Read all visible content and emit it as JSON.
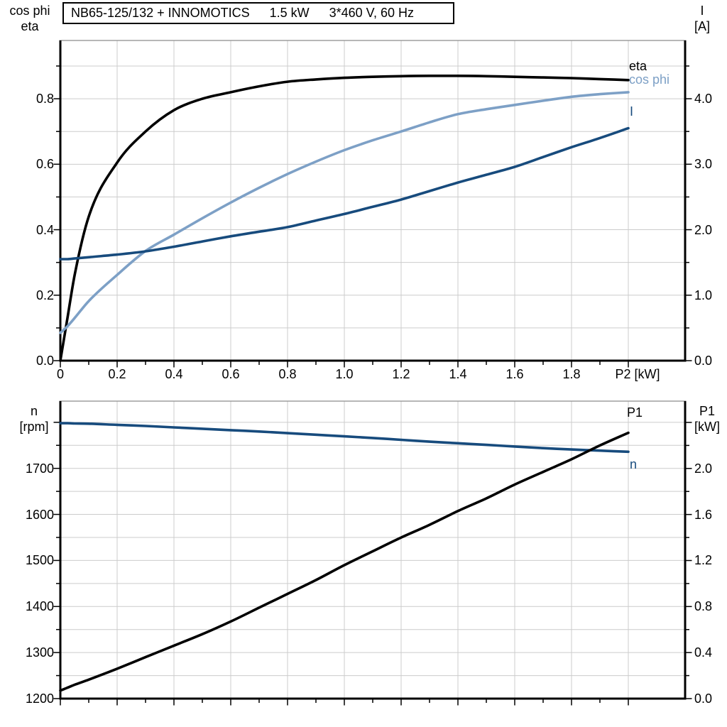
{
  "title": {
    "model": "NB65-125/132 + INNOMOTICS",
    "power": "1.5 kW",
    "voltage": "3*460 V, 60 Hz"
  },
  "colors": {
    "eta_curve": "#000000",
    "cos_phi_curve": "#7da0c6",
    "current_curve": "#174b7d",
    "speed_curve": "#174b7d",
    "p1_curve": "#000000",
    "grid": "#cccccc",
    "frame_top": "#8c8c8c",
    "axis": "#000000",
    "background": "#ffffff"
  },
  "labels": {
    "top_left": [
      "cos phi",
      "eta"
    ],
    "top_right": [
      "I",
      "[A]"
    ],
    "bottom_left": [
      "n",
      "[rpm]"
    ],
    "bottom_right": [
      "P1",
      "[kW]"
    ]
  },
  "curve_labels": {
    "eta": "eta",
    "cos_phi": "cos phi",
    "current": "I",
    "p1": "P1",
    "speed": "n"
  },
  "chart_data": [
    {
      "type": "line",
      "panel": "top",
      "x_label": "P2 [kW]",
      "x_range": [
        0,
        2.2
      ],
      "x_minor_step": 0.1,
      "x_tick_values": [
        0,
        0.2,
        0.4,
        0.6,
        0.8,
        1.0,
        1.2,
        1.4,
        1.6,
        1.8
      ],
      "x_tick_labels": [
        "0",
        "0.2",
        "0.4",
        "0.6",
        "0.8",
        "1.0",
        "1.2",
        "1.4",
        "1.6",
        "1.8"
      ],
      "x_unit_label_at": 2.0,
      "left_axis": {
        "label": "cos phi / eta",
        "range": [
          0,
          0.978
        ],
        "minor_step": 0.1,
        "tick_values": [
          0,
          0.2,
          0.4,
          0.6,
          0.8
        ],
        "tick_labels": [
          "0.0",
          "0.2",
          "0.4",
          "0.6",
          "0.8"
        ],
        "unlabeled_tick_values": []
      },
      "right_axis": {
        "label": "I [A]",
        "range": [
          0,
          4.89
        ],
        "minor_step": 0.5,
        "tick_values": [
          0,
          1.0,
          2.0,
          3.0,
          4.0
        ],
        "tick_labels": [
          "0.0",
          "1.0",
          "2.0",
          "3.0",
          "4.0"
        ],
        "unlabeled_tick_values": []
      },
      "x": [
        0,
        0.025,
        0.05,
        0.1,
        0.2,
        0.3,
        0.4,
        0.5,
        0.6,
        0.7,
        0.8,
        0.9,
        1.0,
        1.1,
        1.2,
        1.3,
        1.4,
        1.5,
        1.6,
        1.7,
        1.8,
        1.9,
        2.0
      ],
      "series": [
        {
          "name": "eta",
          "axis": "left",
          "color": "#000000",
          "values": [
            0,
            0.13,
            0.26,
            0.44,
            0.605,
            0.7,
            0.765,
            0.8,
            0.82,
            0.838,
            0.852,
            0.859,
            0.864,
            0.867,
            0.869,
            0.87,
            0.87,
            0.869,
            0.867,
            0.865,
            0.863,
            0.86,
            0.857
          ]
        },
        {
          "name": "cos phi",
          "axis": "left",
          "color": "#7da0c6",
          "values": [
            0.085,
            0.105,
            0.13,
            0.182,
            0.262,
            0.335,
            0.385,
            0.435,
            0.483,
            0.528,
            0.57,
            0.608,
            0.643,
            0.673,
            0.7,
            0.728,
            0.753,
            0.768,
            0.781,
            0.794,
            0.806,
            0.814,
            0.82
          ]
        },
        {
          "name": "I",
          "axis": "right",
          "color": "#174b7d",
          "values": [
            1.55,
            1.55,
            1.56,
            1.58,
            1.62,
            1.67,
            1.74,
            1.82,
            1.9,
            1.97,
            2.04,
            2.14,
            2.24,
            2.35,
            2.46,
            2.59,
            2.72,
            2.84,
            2.96,
            3.11,
            3.26,
            3.4,
            3.55
          ]
        }
      ]
    },
    {
      "type": "line",
      "panel": "bottom",
      "x_label": "",
      "x_range": [
        0,
        2.2
      ],
      "x_minor_step": 0.1,
      "x_tick_values": [
        0,
        0.2,
        0.4,
        0.6,
        0.8,
        1.0,
        1.2,
        1.4,
        1.6,
        1.8
      ],
      "x_tick_labels": [],
      "x_unit_label_at": 2.0,
      "left_axis": {
        "label": "n [rpm]",
        "range": [
          1200,
          1846
        ],
        "minor_step": 50,
        "tick_values": [
          1200,
          1300,
          1400,
          1500,
          1600,
          1700
        ],
        "tick_labels": [
          "1200",
          "1300",
          "1400",
          "1500",
          "1600",
          "1700"
        ],
        "unlabeled_tick_values": [
          1800
        ]
      },
      "right_axis": {
        "label": "P1 [kW]",
        "range": [
          0,
          2.585
        ],
        "minor_step": 0.2,
        "tick_values": [
          0,
          0.4,
          0.8,
          1.2,
          1.6,
          2.0
        ],
        "tick_labels": [
          "0.0",
          "0.4",
          "0.8",
          "1.2",
          "1.6",
          "2.0"
        ],
        "unlabeled_tick_values": [
          2.4
        ]
      },
      "x": [
        0,
        0.025,
        0.05,
        0.1,
        0.2,
        0.3,
        0.4,
        0.5,
        0.6,
        0.7,
        0.8,
        0.9,
        1.0,
        1.1,
        1.2,
        1.3,
        1.4,
        1.5,
        1.6,
        1.7,
        1.8,
        1.9,
        2.0
      ],
      "series": [
        {
          "name": "n",
          "axis": "left",
          "color": "#174b7d",
          "values": [
            1798,
            1798,
            1797.5,
            1797,
            1794.5,
            1792,
            1789,
            1786,
            1783,
            1780,
            1776.5,
            1773,
            1769.5,
            1766,
            1762,
            1758,
            1754.5,
            1751,
            1747.5,
            1744,
            1741,
            1738.5,
            1736
          ]
        },
        {
          "name": "P1",
          "axis": "right",
          "color": "#000000",
          "values": [
            0.07,
            0.095,
            0.12,
            0.165,
            0.26,
            0.36,
            0.46,
            0.56,
            0.67,
            0.79,
            0.91,
            1.03,
            1.16,
            1.28,
            1.4,
            1.51,
            1.63,
            1.74,
            1.86,
            1.97,
            2.08,
            2.2,
            2.31
          ]
        }
      ]
    }
  ]
}
